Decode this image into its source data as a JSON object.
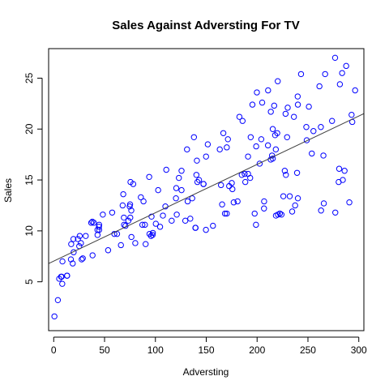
{
  "chart_data": {
    "type": "scatter",
    "title": "Sales Against Adversting For TV",
    "xlabel": "Adversting",
    "ylabel": "Sales",
    "xlim": [
      -5,
      305
    ],
    "ylim": [
      0.2,
      27.9
    ],
    "xticks": [
      0,
      50,
      100,
      150,
      200,
      250,
      300
    ],
    "yticks": [
      5,
      10,
      15,
      20,
      25
    ],
    "grid": false,
    "point_color": "#0000ff",
    "line_color": "#404040",
    "regression_line": {
      "intercept": 7.03,
      "slope": 0.0475
    },
    "series": [
      {
        "points": [
          [
            0.7,
            1.6
          ],
          [
            4.1,
            3.2
          ],
          [
            5.4,
            5.3
          ],
          [
            7.3,
            5.5
          ],
          [
            7.8,
            5.5
          ],
          [
            8.4,
            4.8
          ],
          [
            8.6,
            7.0
          ],
          [
            13.1,
            5.6
          ],
          [
            13.2,
            5.6
          ],
          [
            16.9,
            7.2
          ],
          [
            17.2,
            8.7
          ],
          [
            18.7,
            6.8
          ],
          [
            19.4,
            9.2
          ],
          [
            19.6,
            7.9
          ],
          [
            23.8,
            9.2
          ],
          [
            25.1,
            8.5
          ],
          [
            25.6,
            9.5
          ],
          [
            26.8,
            8.8
          ],
          [
            27.5,
            7.2
          ],
          [
            28.6,
            7.3
          ],
          [
            31.5,
            9.5
          ],
          [
            36.9,
            10.8
          ],
          [
            38.0,
            10.9
          ],
          [
            38.2,
            7.6
          ],
          [
            39.5,
            10.8
          ],
          [
            43.0,
            10.1
          ],
          [
            43.1,
            9.6
          ],
          [
            44.5,
            10.4
          ],
          [
            44.7,
            10.1
          ],
          [
            48.3,
            11.6
          ],
          [
            53.5,
            8.1
          ],
          [
            57.5,
            11.8
          ],
          [
            59.6,
            9.7
          ],
          [
            62.3,
            9.7
          ],
          [
            66.1,
            8.6
          ],
          [
            67.8,
            12.5
          ],
          [
            68.4,
            13.6
          ],
          [
            69.0,
            11.3
          ],
          [
            69.2,
            10.6
          ],
          [
            70.6,
            10.5
          ],
          [
            73.4,
            11.0
          ],
          [
            74.7,
            12.4
          ],
          [
            75.1,
            12.6
          ],
          [
            75.3,
            11.3
          ],
          [
            75.5,
            14.8
          ],
          [
            76.3,
            12.0
          ],
          [
            76.4,
            9.4
          ],
          [
            78.2,
            14.6
          ],
          [
            80.2,
            8.8
          ],
          [
            85.7,
            13.3
          ],
          [
            87.2,
            10.6
          ],
          [
            88.3,
            12.9
          ],
          [
            89.7,
            10.6
          ],
          [
            90.4,
            8.7
          ],
          [
            93.9,
            15.3
          ],
          [
            94.2,
            9.7
          ],
          [
            95.7,
            9.5
          ],
          [
            96.2,
            11.4
          ],
          [
            97.2,
            9.6
          ],
          [
            97.5,
            9.8
          ],
          [
            100.4,
            10.7
          ],
          [
            102.7,
            14.0
          ],
          [
            104.6,
            10.4
          ],
          [
            107.4,
            11.5
          ],
          [
            109.8,
            12.4
          ],
          [
            110.7,
            16.0
          ],
          [
            116.0,
            11.0
          ],
          [
            120.2,
            13.2
          ],
          [
            120.5,
            14.2
          ],
          [
            121.0,
            11.6
          ],
          [
            123.1,
            15.2
          ],
          [
            125.7,
            15.9
          ],
          [
            129.4,
            11.0
          ],
          [
            131.1,
            18.0
          ],
          [
            131.7,
            12.9
          ],
          [
            134.3,
            11.2
          ],
          [
            136.2,
            13.2
          ],
          [
            137.9,
            19.2
          ],
          [
            139.3,
            10.3
          ],
          [
            139.5,
            10.3
          ],
          [
            140.3,
            15.5
          ],
          [
            141.3,
            14.8
          ],
          [
            142.9,
            15.0
          ],
          [
            147.3,
            14.6
          ],
          [
            149.7,
            10.1
          ],
          [
            149.8,
            17.3
          ],
          [
            151.5,
            18.5
          ],
          [
            156.6,
            10.5
          ],
          [
            163.3,
            18.0
          ],
          [
            164.5,
            14.5
          ],
          [
            165.6,
            12.6
          ],
          [
            166.8,
            19.6
          ],
          [
            168.4,
            11.7
          ],
          [
            170.2,
            11.7
          ],
          [
            171.3,
            19.0
          ],
          [
            172.5,
            14.4
          ],
          [
            175.1,
            14.7
          ],
          [
            175.7,
            14.1
          ],
          [
            177.0,
            12.8
          ],
          [
            180.8,
            12.9
          ],
          [
            182.6,
            21.2
          ],
          [
            184.9,
            15.5
          ],
          [
            185.7,
            20.8
          ],
          [
            187.8,
            15.6
          ],
          [
            188.4,
            14.8
          ],
          [
            191.1,
            17.3
          ],
          [
            193.2,
            15.2
          ],
          [
            193.7,
            19.2
          ],
          [
            195.4,
            22.4
          ],
          [
            197.6,
            11.7
          ],
          [
            198.9,
            10.6
          ],
          [
            199.1,
            18.3
          ],
          [
            199.8,
            23.6
          ],
          [
            202.5,
            16.6
          ],
          [
            204.1,
            19.0
          ],
          [
            205.0,
            22.6
          ],
          [
            206.8,
            12.2
          ],
          [
            206.9,
            12.9
          ],
          [
            210.7,
            18.4
          ],
          [
            210.8,
            23.8
          ],
          [
            213.5,
            21.7
          ],
          [
            213.4,
            17.0
          ],
          [
            214.7,
            17.4
          ],
          [
            215.4,
            17.1
          ],
          [
            217.7,
            19.4
          ],
          [
            218.4,
            18.0
          ],
          [
            218.5,
            11.5
          ],
          [
            219.8,
            19.6
          ],
          [
            220.5,
            11.6
          ],
          [
            222.4,
            11.7
          ],
          [
            224.0,
            11.6
          ],
          [
            225.8,
            13.4
          ],
          [
            227.2,
            15.9
          ],
          [
            228.0,
            21.5
          ],
          [
            228.3,
            15.5
          ],
          [
            230.1,
            22.1
          ],
          [
            232.1,
            13.4
          ],
          [
            234.5,
            11.9
          ],
          [
            237.4,
            12.5
          ],
          [
            239.3,
            15.7
          ],
          [
            239.9,
            23.2
          ],
          [
            240.1,
            13.2
          ],
          [
            243.2,
            25.4
          ],
          [
            248.4,
            20.2
          ],
          [
            248.8,
            18.9
          ],
          [
            250.9,
            22.2
          ],
          [
            253.8,
            17.6
          ],
          [
            262.7,
            20.2
          ],
          [
            262.9,
            12.0
          ],
          [
            265.2,
            17.4
          ],
          [
            265.6,
            12.7
          ],
          [
            266.9,
            25.4
          ],
          [
            273.7,
            20.8
          ],
          [
            276.7,
            27.0
          ],
          [
            276.9,
            11.8
          ],
          [
            280.2,
            14.8
          ],
          [
            280.7,
            16.1
          ],
          [
            281.4,
            24.4
          ],
          [
            283.6,
            25.5
          ],
          [
            284.3,
            15.0
          ],
          [
            286.0,
            15.9
          ],
          [
            287.6,
            26.2
          ],
          [
            290.7,
            12.8
          ],
          [
            292.9,
            21.4
          ],
          [
            293.6,
            20.7
          ],
          [
            296.4,
            23.8
          ],
          [
            255.4,
            19.8
          ],
          [
            261.3,
            24.2
          ],
          [
            236.2,
            21.2
          ],
          [
            216.8,
            22.3
          ],
          [
            220.3,
            24.7
          ],
          [
            170.2,
            18.2
          ],
          [
            140.8,
            16.9
          ],
          [
            147.3,
            14.6
          ],
          [
            191.1,
            15.6
          ],
          [
            215.4,
            20.0
          ],
          [
            229.5,
            19.2
          ],
          [
            240.1,
            22.4
          ],
          [
            125.7,
            14.0
          ],
          [
            44.7,
            10.6
          ]
        ]
      }
    ]
  }
}
